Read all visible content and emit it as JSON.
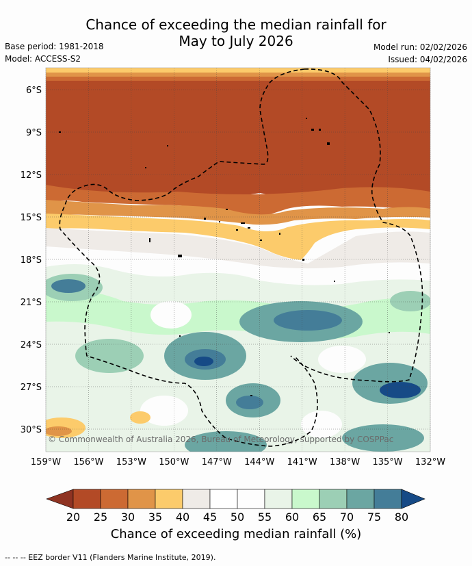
{
  "title": {
    "line1": "Chance of exceeding the median rainfall for",
    "line2": "May to July 2026"
  },
  "meta": {
    "base_period": "Base period: 1981-2018",
    "model": "Model: ACCESS-S2",
    "model_run": "Model run: 02/02/2026",
    "issued": "Issued: 04/02/2026"
  },
  "map": {
    "lon_labels": [
      "159°W",
      "156°W",
      "153°W",
      "150°W",
      "147°W",
      "144°W",
      "141°W",
      "138°W",
      "135°W",
      "132°W"
    ],
    "lat_labels": [
      "6°S",
      "9°S",
      "12°S",
      "15°S",
      "18°S",
      "21°S",
      "24°S",
      "27°S",
      "30°S"
    ],
    "copyright": "© Commonwealth of Australia 2026, Bureau of Meteorology, supported by COSPPac"
  },
  "colorbar": {
    "ticks": [
      "20",
      "25",
      "30",
      "35",
      "40",
      "45",
      "50",
      "55",
      "60",
      "65",
      "70",
      "75",
      "80"
    ],
    "colors": [
      "#8f3322",
      "#b34a26",
      "#cc6a33",
      "#e09448",
      "#fccb6b",
      "#efebe7",
      "#ffffff",
      "#fdfdfd",
      "#e9f4e8",
      "#c9f8cc",
      "#9ccfb5",
      "#6ba6a2",
      "#447d98",
      "#164a86"
    ],
    "label": "Chance of exceeding median rainfall (%)"
  },
  "legend": {
    "eez": "--  --  -- EEZ border V11 (Flanders Marine Institute, 2019)."
  }
}
